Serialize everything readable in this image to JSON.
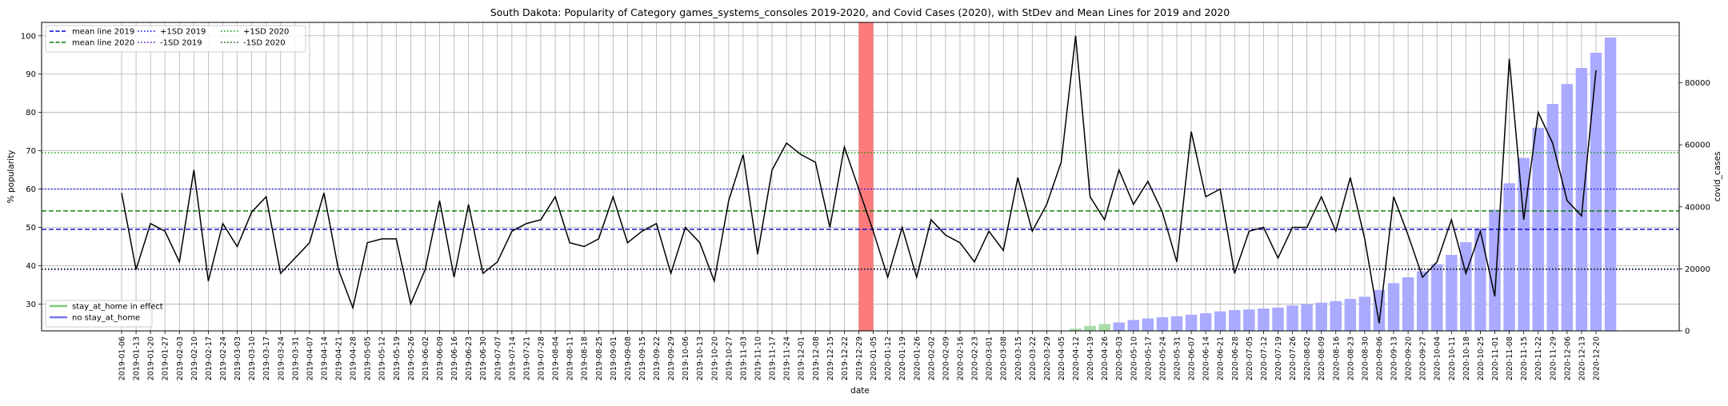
{
  "chart_data": {
    "type": "line",
    "title": "South Dakota: Popularity of Category games_systems_consoles 2019-2020, and Covid Cases (2020), with StDev and Mean Lines for 2019 and 2020",
    "xlabel": "date",
    "ylabel_left": "% popularity",
    "ylabel_right": "covid_cases",
    "ylim_left": [
      23,
      103.5
    ],
    "ylim_right": [
      0,
      99500
    ],
    "yticks_left": [
      "30",
      "40",
      "50",
      "60",
      "70",
      "80",
      "90",
      "100"
    ],
    "yticks_right": [
      "0",
      "20000",
      "40000",
      "60000",
      "80000"
    ],
    "grid": true,
    "dates": [
      "2019-01-06",
      "2019-01-13",
      "2019-01-20",
      "2019-01-27",
      "2019-02-03",
      "2019-02-10",
      "2019-02-17",
      "2019-02-24",
      "2019-03-03",
      "2019-03-10",
      "2019-03-17",
      "2019-03-24",
      "2019-03-31",
      "2019-04-07",
      "2019-04-14",
      "2019-04-21",
      "2019-04-28",
      "2019-05-05",
      "2019-05-12",
      "2019-05-19",
      "2019-05-26",
      "2019-06-02",
      "2019-06-09",
      "2019-06-16",
      "2019-06-23",
      "2019-06-30",
      "2019-07-07",
      "2019-07-14",
      "2019-07-21",
      "2019-07-28",
      "2019-08-04",
      "2019-08-11",
      "2019-08-18",
      "2019-08-25",
      "2019-09-01",
      "2019-09-08",
      "2019-09-15",
      "2019-09-22",
      "2019-09-29",
      "2019-10-06",
      "2019-10-13",
      "2019-10-20",
      "2019-10-27",
      "2019-11-03",
      "2019-11-10",
      "2019-11-17",
      "2019-11-24",
      "2019-12-01",
      "2019-12-08",
      "2019-12-15",
      "2019-12-22",
      "2019-12-29",
      "2020-01-05",
      "2020-01-12",
      "2020-01-19",
      "2020-01-26",
      "2020-02-02",
      "2020-02-09",
      "2020-02-16",
      "2020-02-23",
      "2020-03-01",
      "2020-03-08",
      "2020-03-15",
      "2020-03-22",
      "2020-03-29",
      "2020-04-05",
      "2020-04-12",
      "2020-04-19",
      "2020-04-26",
      "2020-05-03",
      "2020-05-10",
      "2020-05-17",
      "2020-05-24",
      "2020-05-31",
      "2020-06-07",
      "2020-06-14",
      "2020-06-21",
      "2020-06-28",
      "2020-07-05",
      "2020-07-12",
      "2020-07-19",
      "2020-07-26",
      "2020-08-02",
      "2020-08-09",
      "2020-08-16",
      "2020-08-23",
      "2020-08-30",
      "2020-09-06",
      "2020-09-13",
      "2020-09-20",
      "2020-09-27",
      "2020-10-04",
      "2020-10-11",
      "2020-10-18",
      "2020-10-25",
      "2020-11-01",
      "2020-11-08",
      "2020-11-15",
      "2020-11-22",
      "2020-11-29",
      "2020-12-06",
      "2020-12-13",
      "2020-12-20"
    ],
    "popularity": [
      59,
      39,
      51,
      49,
      41,
      65,
      36,
      51,
      45,
      54,
      58,
      38,
      42,
      46,
      59,
      39,
      29,
      46,
      47,
      47,
      30,
      39,
      57,
      37,
      56,
      38,
      41,
      49,
      51,
      52,
      58,
      46,
      45,
      47,
      58,
      46,
      49,
      51,
      38,
      50,
      46,
      36,
      57,
      69,
      43,
      65,
      72,
      69,
      67,
      50,
      71,
      60,
      49,
      37,
      50,
      37,
      52,
      48,
      46,
      41,
      49,
      44,
      63,
      49,
      56,
      67,
      100,
      58,
      52,
      65,
      56,
      62,
      54,
      41,
      75,
      58,
      60,
      38,
      49,
      50,
      42,
      50,
      50,
      58,
      49,
      63,
      47,
      25,
      58,
      48,
      37,
      41,
      52,
      38,
      49,
      32,
      94,
      52,
      80,
      72,
      57,
      53,
      91
    ],
    "covid_cases": [
      0,
      0,
      0,
      0,
      0,
      0,
      0,
      0,
      0,
      0,
      0,
      0,
      0,
      0,
      0,
      0,
      0,
      0,
      0,
      0,
      0,
      0,
      0,
      0,
      0,
      0,
      0,
      0,
      0,
      0,
      0,
      0,
      0,
      0,
      0,
      0,
      0,
      0,
      0,
      0,
      0,
      0,
      0,
      0,
      0,
      0,
      0,
      0,
      0,
      0,
      0,
      0,
      0,
      0,
      0,
      0,
      0,
      0,
      0,
      0,
      0,
      0,
      0,
      0,
      0,
      50,
      700,
      1600,
      2200,
      2700,
      3500,
      4000,
      4400,
      4700,
      5200,
      5700,
      6300,
      6700,
      6900,
      7200,
      7500,
      8200,
      8600,
      9100,
      9600,
      10300,
      11000,
      13200,
      15400,
      17300,
      19200,
      21500,
      24500,
      28600,
      33000,
      39100,
      47600,
      55800,
      65500,
      73200,
      79600,
      84800,
      89700,
      94600
    ],
    "stay_at_home_start": "2020-04-05",
    "stay_at_home_end": "2020-05-03",
    "highlight_date": "2020-01-05",
    "stats": {
      "mean_2019": 49.5,
      "sd_plus_2019": 60,
      "sd_minus_2019": 39,
      "mean_2020": 54.3,
      "sd_plus_2020": 69.5,
      "sd_minus_2020": 39.2
    },
    "legend_top": [
      {
        "label": "mean line 2019",
        "color": "#0000cc",
        "style": "dashed"
      },
      {
        "label": "mean line 2020",
        "color": "#007700",
        "style": "dashed"
      },
      {
        "label": "+1SD 2019",
        "color": "#0000ff",
        "style": "dotted"
      },
      {
        "label": "-1SD 2019",
        "color": "#4400aa",
        "style": "dotted"
      },
      {
        "label": "+1SD 2020",
        "color": "#009900",
        "style": "dotted"
      },
      {
        "label": "-1SD 2020",
        "color": "#004400",
        "style": "dotted"
      }
    ],
    "legend_bottom": [
      {
        "label": "stay_at_home in effect",
        "color": "#7fcc7f"
      },
      {
        "label": "no stay_at_home",
        "color": "#7777ee"
      }
    ],
    "colors": {
      "line": "#000000",
      "bar_no_stay": "#aaaaff",
      "bar_stay": "#aadcaa",
      "highlight": "#ff7b7b",
      "grid": "#b0b0b0"
    }
  }
}
